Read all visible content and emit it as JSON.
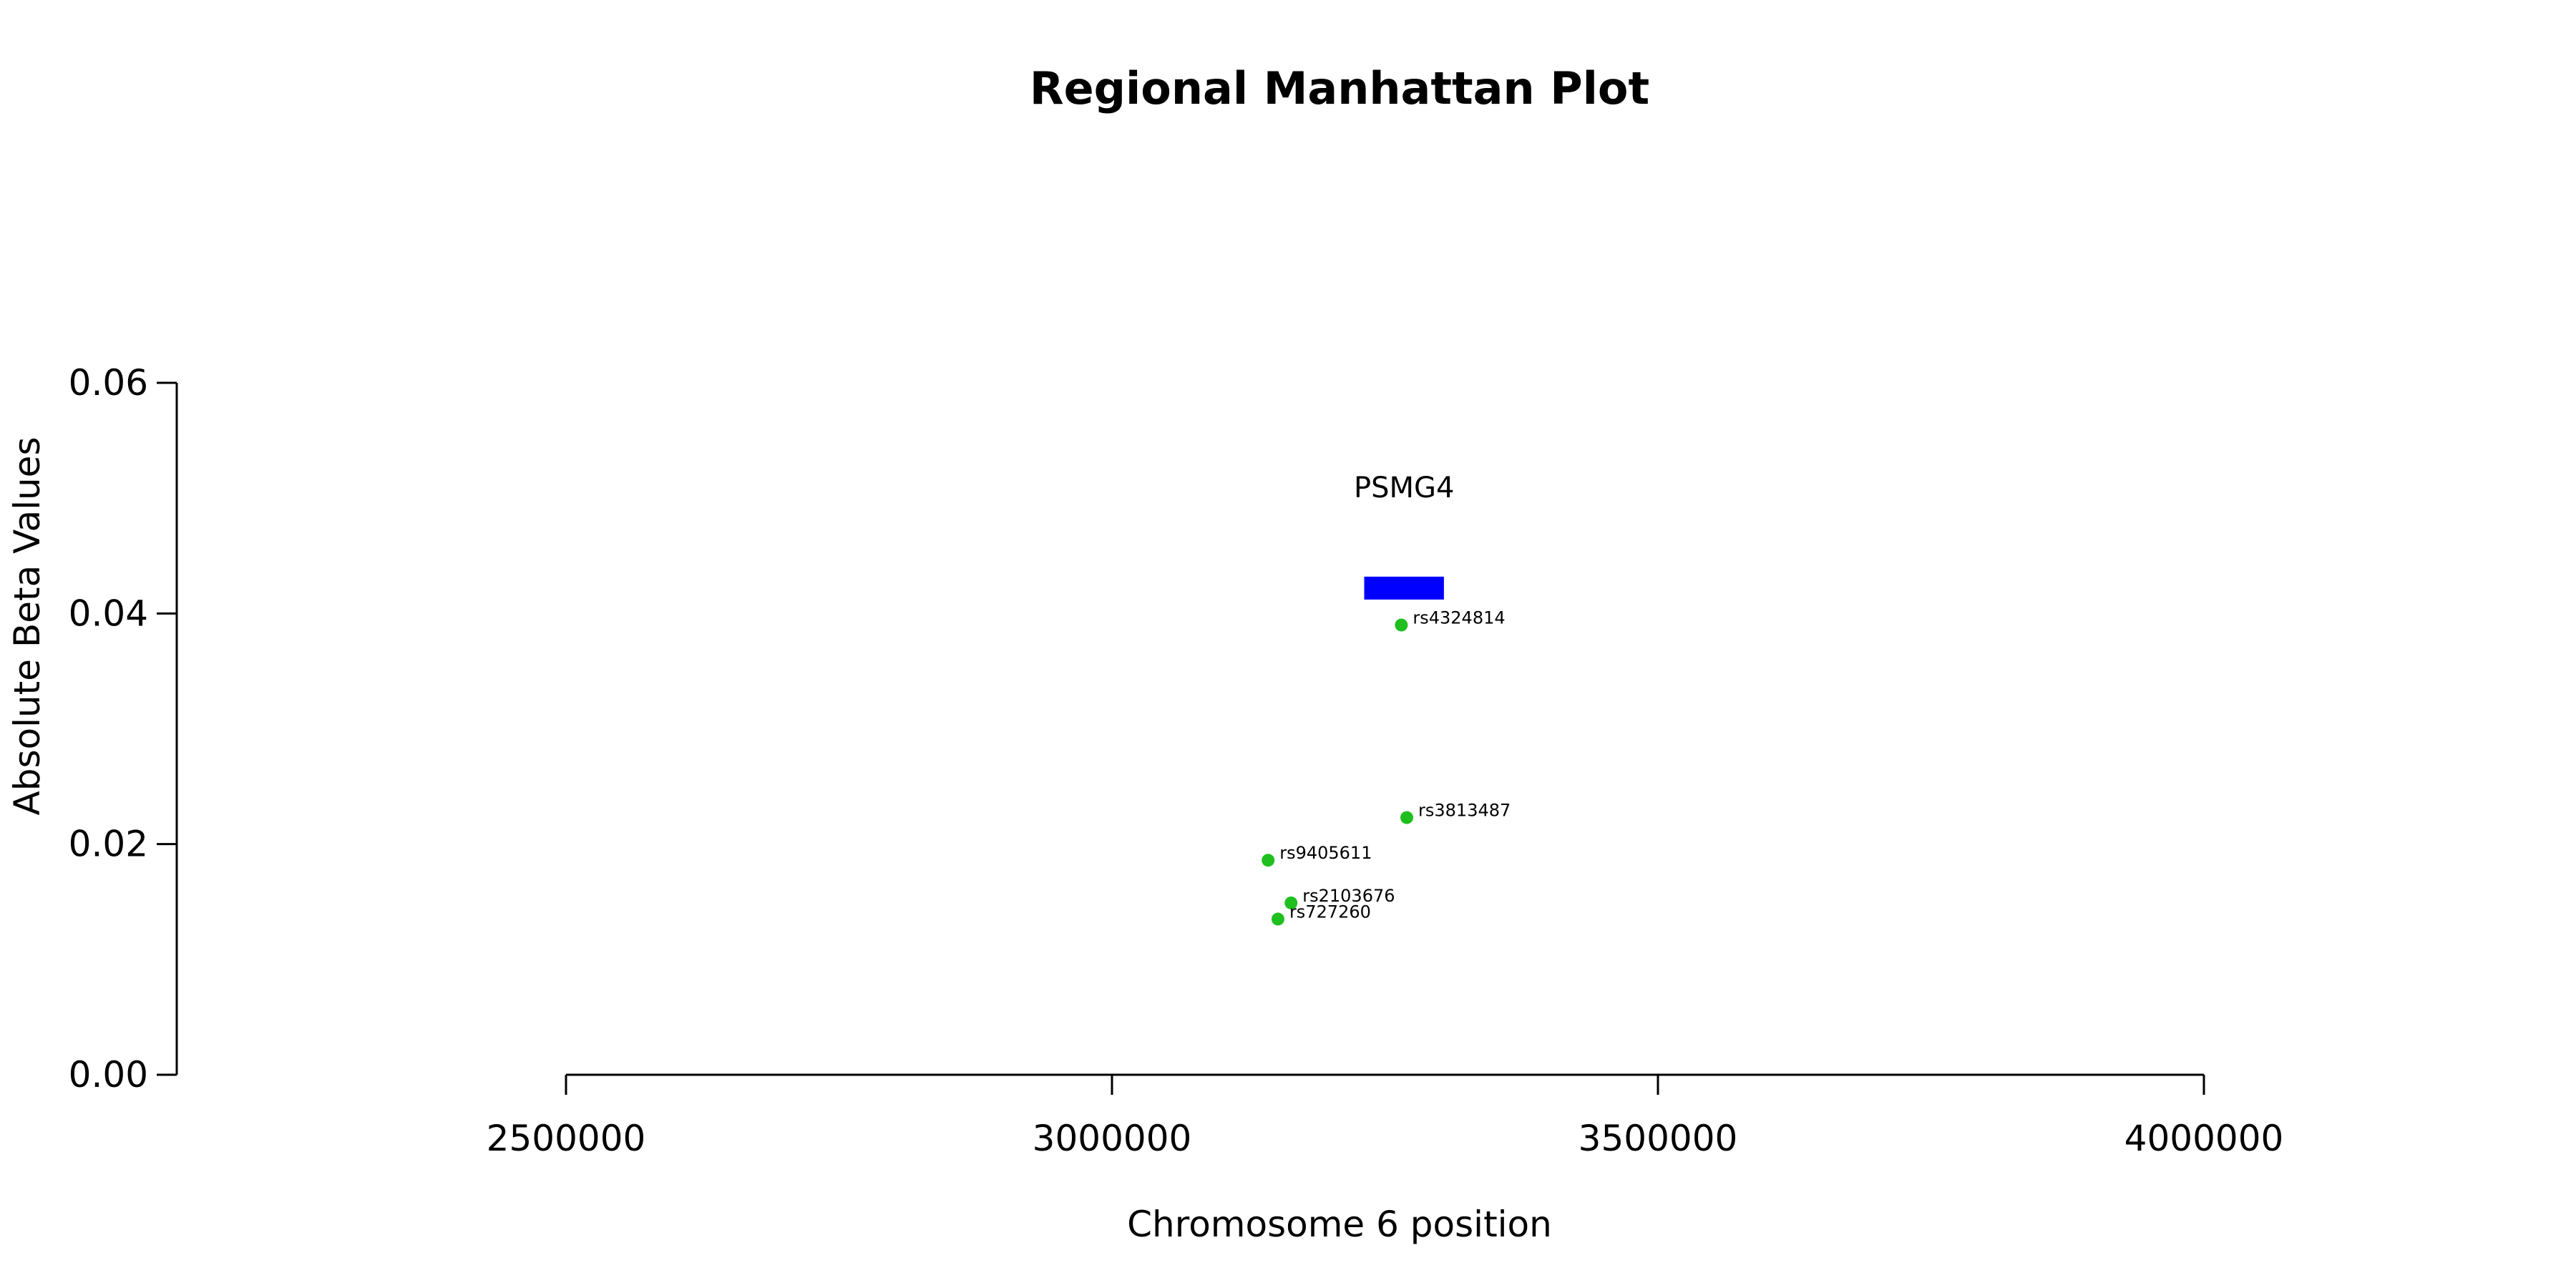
{
  "chart_data": {
    "type": "scatter",
    "title": "Regional Manhattan Plot",
    "xlabel": "Chromosome 6 position",
    "ylabel": "Absolute Beta Values",
    "xlim": [
      2500000,
      4000000
    ],
    "ylim": [
      0,
      0.06
    ],
    "x_ticks": [
      2500000,
      3000000,
      3500000,
      4000000
    ],
    "x_tick_labels": [
      "2500000",
      "3000000",
      "3500000",
      "4000000"
    ],
    "y_ticks": [
      0,
      0.02,
      0.04,
      0.06
    ],
    "y_tick_labels": [
      "0.00",
      "0.02",
      "0.04",
      "0.06"
    ],
    "grid": false,
    "point_color": "#1fbf1f",
    "gene_color": "#0000ff",
    "points": [
      {
        "label": "rs4324814",
        "x": 3265000,
        "y": 0.039
      },
      {
        "label": "rs3813487",
        "x": 3270000,
        "y": 0.0223
      },
      {
        "label": "rs9405611",
        "x": 3143000,
        "y": 0.0186
      },
      {
        "label": "rs2103676",
        "x": 3164000,
        "y": 0.0149
      },
      {
        "label": "rs727260",
        "x": 3152000,
        "y": 0.0135
      }
    ],
    "genes": [
      {
        "name": "PSMG4",
        "start": 3231000,
        "end": 3304000,
        "y": 0.0422
      }
    ]
  }
}
